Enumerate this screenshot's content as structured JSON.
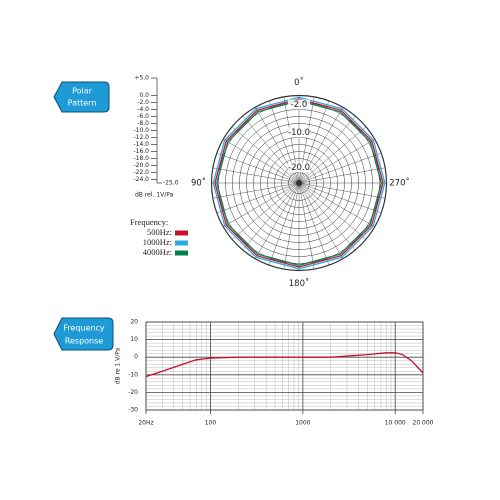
{
  "polar_badge": [
    "Polar",
    "Pattern"
  ],
  "frequency_badge": [
    "Frequency",
    "Response"
  ],
  "chart_data": [
    {
      "type": "polar",
      "scale_label": "dB rel. 1V/Pa",
      "scale_ticks": [
        {
          "value": 5,
          "label": "+5.0"
        },
        {
          "value": 0,
          "label": "0.0"
        },
        {
          "value": -2,
          "label": "-2.0"
        },
        {
          "value": -4,
          "label": "-4.0"
        },
        {
          "value": -6,
          "label": "-6.0"
        },
        {
          "value": -8,
          "label": "-8.0"
        },
        {
          "value": -10,
          "label": "-10.0"
        },
        {
          "value": -12,
          "label": "-12.0"
        },
        {
          "value": -14,
          "label": "-14.0"
        },
        {
          "value": -16,
          "label": "-16.0"
        },
        {
          "value": -18,
          "label": "-18.0"
        },
        {
          "value": -20,
          "label": "-20.0"
        },
        {
          "value": -22,
          "label": "-22.0"
        },
        {
          "value": -24,
          "label": "-24.0"
        },
        {
          "value": -25,
          "label": "-25.0"
        }
      ],
      "rlim": [
        -25,
        0
      ],
      "rings": [
        -22,
        -20,
        -18,
        -16,
        -14,
        -12,
        -10,
        -8,
        -6,
        -4,
        -2,
        0
      ],
      "ring_labels": [
        {
          "value": -2,
          "label": "-2.0"
        },
        {
          "value": -10,
          "label": "-10.0"
        },
        {
          "value": -20,
          "label": "-20.0"
        }
      ],
      "angle_labels": [
        {
          "value": 0,
          "label": "0˚"
        },
        {
          "value": 90,
          "label": "90˚"
        },
        {
          "value": 180,
          "label": "180˚"
        },
        {
          "value": 270,
          "label": "270˚"
        }
      ],
      "theta": [
        0,
        30,
        60,
        90,
        120,
        150,
        180,
        210,
        240,
        270,
        300,
        330
      ],
      "legend_title": "Frequency:",
      "series": [
        {
          "name": "500Hz:",
          "color": "#c8102e",
          "values": [
            -1,
            -1,
            -1,
            -1,
            -1,
            -1,
            -1,
            -1,
            -1,
            -1,
            -1,
            -1
          ]
        },
        {
          "name": "1000Hz:",
          "color": "#29abe2",
          "values": [
            -0.5,
            -0.5,
            -0.5,
            -0.5,
            -0.5,
            -0.5,
            -0.5,
            -0.5,
            -0.5,
            -0.5,
            -0.5,
            -0.5
          ]
        },
        {
          "name": "4000Hz:",
          "color": "#00804a",
          "values": [
            -1.5,
            -1.5,
            -1.5,
            -1.5,
            -1.5,
            -1.5,
            -1.5,
            -1.5,
            -1.5,
            -1.5,
            -1.5,
            -1.5
          ]
        }
      ]
    },
    {
      "type": "line",
      "ylabel": "dB re 1 V/Pa",
      "xlog": true,
      "grid": true,
      "xlim": [
        20,
        20000
      ],
      "ylim": [
        -30,
        20
      ],
      "xticks": [
        {
          "value": 20,
          "label": "20Hz"
        },
        100,
        1000,
        {
          "value": 10000,
          "label": "10 000"
        },
        {
          "value": 20000,
          "label": "20 000"
        }
      ],
      "yticks": [
        -30,
        -20,
        -10,
        0,
        10,
        20
      ],
      "xminor": [
        30,
        40,
        50,
        60,
        70,
        80,
        90,
        200,
        300,
        400,
        500,
        600,
        700,
        800,
        900,
        2000,
        3000,
        4000,
        5000,
        6000,
        7000,
        8000,
        9000
      ],
      "yminor": [
        -28,
        -26,
        -24,
        -22,
        -18,
        -16,
        -14,
        -12,
        -8,
        -6,
        -4,
        -2,
        2,
        4,
        6,
        8,
        12,
        14,
        16,
        18
      ],
      "x": [
        20,
        30,
        50,
        70,
        100,
        200,
        500,
        1000,
        2000,
        5000,
        8000,
        10000,
        12000,
        15000,
        20000
      ],
      "series": [
        {
          "color": "#c8102e",
          "values": [
            -11,
            -8,
            -4,
            -1.5,
            -0.5,
            0,
            0,
            0,
            0,
            1.5,
            2.5,
            2.5,
            1.5,
            -2,
            -9
          ]
        }
      ]
    }
  ]
}
